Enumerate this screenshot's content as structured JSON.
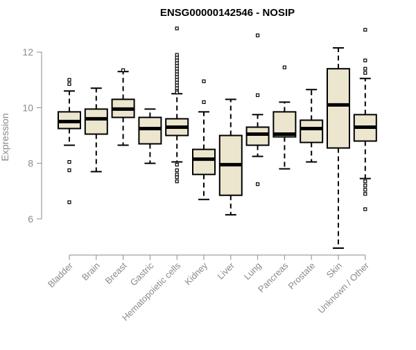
{
  "chart_data": {
    "type": "boxplot",
    "title": "ENSG00000142546 - NOSIP",
    "xlabel": "",
    "ylabel": "Expression",
    "ylim": [
      4.9,
      13.0
    ],
    "yticks": [
      6,
      8,
      10,
      12
    ],
    "ytick_labels": [
      "6",
      "8",
      "10",
      "12"
    ],
    "grid": false,
    "legend": "none",
    "colors": {
      "box_fill": "#ede6cf",
      "stroke": "#000000",
      "axis": "#8a8a8a"
    },
    "categories": [
      "Bladder",
      "Brain",
      "Breast",
      "Gastric",
      "Hematopoietic cells",
      "Kidney",
      "Liver",
      "Lung",
      "Pancreas",
      "Prostate",
      "Skin",
      "Unknown / Other"
    ],
    "boxes": [
      {
        "name": "Bladder",
        "q1": 9.25,
        "median": 9.5,
        "q3": 9.85,
        "whisker_low": 8.65,
        "whisker_high": 10.6,
        "outliers": [
          11.0,
          10.85,
          8.05,
          7.75,
          6.6
        ]
      },
      {
        "name": "Brain",
        "q1": 9.05,
        "median": 9.6,
        "q3": 9.95,
        "whisker_low": 7.7,
        "whisker_high": 10.7,
        "outliers": []
      },
      {
        "name": "Breast",
        "q1": 9.65,
        "median": 9.95,
        "q3": 10.3,
        "whisker_low": 8.65,
        "whisker_high": 11.3,
        "outliers": [
          11.35
        ]
      },
      {
        "name": "Gastric",
        "q1": 8.7,
        "median": 9.25,
        "q3": 9.65,
        "whisker_low": 8.0,
        "whisker_high": 9.95,
        "outliers": []
      },
      {
        "name": "Hematopoietic cells",
        "q1": 9.0,
        "median": 9.3,
        "q3": 9.6,
        "whisker_low": 8.05,
        "whisker_high": 10.5,
        "outliers": [
          12.85,
          11.9,
          11.8,
          11.7,
          11.6,
          11.5,
          11.4,
          11.3,
          11.2,
          11.1,
          11.0,
          10.9,
          10.8,
          10.7,
          10.6,
          10.55,
          7.95,
          7.75,
          7.6,
          7.5,
          7.35
        ]
      },
      {
        "name": "Kidney",
        "q1": 7.6,
        "median": 8.15,
        "q3": 8.5,
        "whisker_low": 6.7,
        "whisker_high": 9.85,
        "outliers": [
          10.95,
          10.2
        ]
      },
      {
        "name": "Liver",
        "q1": 6.85,
        "median": 7.95,
        "q3": 9.0,
        "whisker_low": 6.15,
        "whisker_high": 10.3,
        "outliers": []
      },
      {
        "name": "Lung",
        "q1": 8.65,
        "median": 9.05,
        "q3": 9.3,
        "whisker_low": 8.25,
        "whisker_high": 9.75,
        "outliers": [
          12.6,
          10.45,
          7.25
        ]
      },
      {
        "name": "Pancreas",
        "q1": 8.95,
        "median": 9.05,
        "q3": 9.85,
        "whisker_low": 7.8,
        "whisker_high": 10.2,
        "outliers": [
          11.45
        ]
      },
      {
        "name": "Prostate",
        "q1": 8.75,
        "median": 9.25,
        "q3": 9.55,
        "whisker_low": 8.05,
        "whisker_high": 10.65,
        "outliers": []
      },
      {
        "name": "Skin",
        "q1": 8.55,
        "median": 10.1,
        "q3": 11.4,
        "whisker_low": 4.95,
        "whisker_high": 12.15,
        "outliers": []
      },
      {
        "name": "Unknown / Other",
        "q1": 8.8,
        "median": 9.3,
        "q3": 9.75,
        "whisker_low": 7.45,
        "whisker_high": 11.05,
        "outliers": [
          12.8,
          11.7,
          11.4,
          11.25,
          7.35,
          7.2,
          7.05,
          6.9,
          6.35
        ]
      }
    ]
  }
}
